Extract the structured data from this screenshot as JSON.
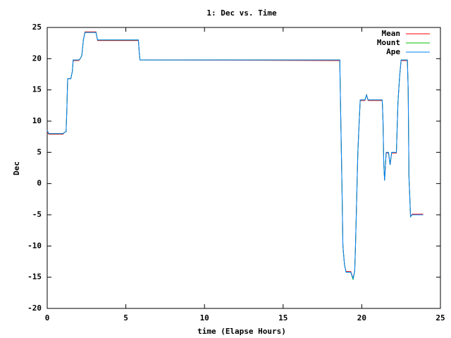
{
  "chart_data": {
    "type": "line",
    "title": "1: Dec vs. Time",
    "x_label": "time (Elapse Hours)",
    "y_label": "Dec",
    "x": [
      0,
      0.1,
      1,
      1.1,
      1.2,
      1.25,
      1.3,
      1.5,
      1.6,
      1.65,
      2,
      2.1,
      2.2,
      2.3,
      2.4,
      3.1,
      3.2,
      5.8,
      5.85,
      5.9,
      18.6,
      18.65,
      18.75,
      18.8,
      18.9,
      19,
      19.3,
      19.45,
      19.55,
      19.6,
      19.75,
      19.8,
      19.9,
      20.2,
      20.3,
      20.4,
      21.3,
      21.35,
      21.4,
      21.45,
      21.55,
      21.7,
      21.8,
      21.9,
      22.2,
      22.3,
      22.4,
      22.5,
      22.9,
      22.95,
      23,
      23.05,
      23.1,
      23.2,
      23.9
    ],
    "series": [
      {
        "name": "Mean",
        "color": "#ff0000",
        "values": [
          8.3,
          7.9,
          7.9,
          8.2,
          8.3,
          12,
          16.8,
          16.8,
          18,
          19.7,
          19.7,
          20,
          20.5,
          23,
          24.3,
          24.3,
          22.9,
          22.9,
          21,
          19.8,
          19.7,
          12.5,
          -2,
          -10,
          -13,
          -14.1,
          -14.1,
          -15.2,
          -14,
          -10,
          5,
          8,
          13.3,
          13.3,
          14.2,
          13.3,
          13.3,
          10,
          3,
          0.5,
          4.9,
          4.9,
          3,
          4.9,
          4.9,
          13,
          17,
          19.7,
          19.7,
          15,
          1,
          -2,
          -5.3,
          -4.9,
          -4.9
        ]
      },
      {
        "name": "Mount",
        "color": "#00c000",
        "values": [
          8.5,
          8,
          8,
          8.2,
          8.3,
          12,
          16.8,
          16.8,
          18,
          19.8,
          19.8,
          20,
          20.5,
          23,
          24.2,
          24.2,
          23,
          23,
          21,
          19.8,
          19.8,
          12.5,
          -2,
          -10,
          -13,
          -14.2,
          -14.2,
          -15.4,
          -14,
          -10,
          5,
          8,
          13.4,
          13.4,
          14.2,
          13.4,
          13.4,
          10,
          3,
          0.5,
          5,
          5,
          3,
          5,
          5,
          13,
          17,
          19.8,
          19.8,
          15,
          1,
          -2,
          -5.3,
          -5,
          -5
        ]
      },
      {
        "name": "Ape",
        "color": "#0080ff",
        "values": [
          8.5,
          8,
          8,
          8.2,
          8.3,
          12,
          16.8,
          16.8,
          18,
          19.8,
          19.8,
          20,
          20.5,
          23,
          24.2,
          24.2,
          23,
          23,
          21,
          19.8,
          19.8,
          12.5,
          -2,
          -10,
          -13,
          -14.2,
          -14.2,
          -15.2,
          -14,
          -10,
          5,
          8,
          13.4,
          13.4,
          14.2,
          13.4,
          13.4,
          10,
          3,
          0.5,
          5,
          5,
          3,
          5,
          5,
          13,
          17,
          19.8,
          19.8,
          15,
          1,
          -2,
          -5.3,
          -5,
          -5
        ]
      }
    ],
    "xlim": [
      0,
      25
    ],
    "xticks": [
      0,
      5,
      10,
      15,
      20,
      25
    ],
    "ylim": [
      -20,
      25
    ],
    "yticks": [
      -20,
      -15,
      -10,
      -5,
      0,
      5,
      10,
      15,
      20,
      25
    ],
    "legend": "top-right",
    "grid": false
  }
}
